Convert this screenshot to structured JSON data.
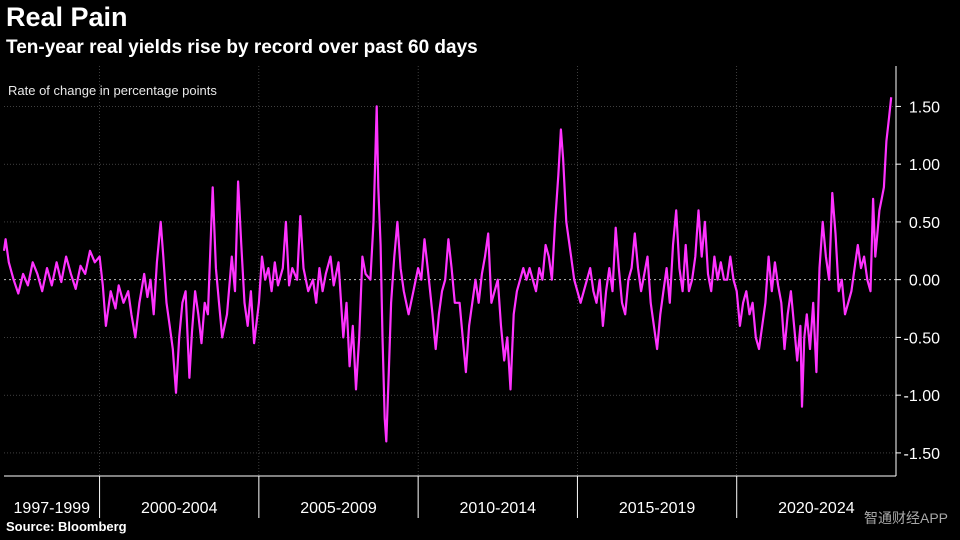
{
  "title": "Real Pain",
  "subtitle": "Ten-year real yields rise by record over past 60 days",
  "source": "Source: Bloomberg",
  "brand": "Bloomberg",
  "watermark": "智通财经APP",
  "colors": {
    "background": "#000000",
    "series": "#ff33ff",
    "grid": "#666666",
    "text": "#ffffff"
  },
  "chart_data": {
    "type": "line",
    "ylabel": "Rate of change in percentage points",
    "ylim": [
      -1.7,
      1.85
    ],
    "yticks": [
      1.5,
      1.0,
      0.5,
      0.0,
      -0.5,
      -1.0,
      -1.5
    ],
    "ytick_labels": [
      "1.50",
      "1.00",
      "0.50",
      "0.00",
      "-0.50",
      "-1.00",
      "-1.50"
    ],
    "x_range": [
      1997.0,
      2025.0
    ],
    "x_groups": [
      {
        "label": "1997-1999",
        "start": 1997.0,
        "end": 2000.0
      },
      {
        "label": "2000-2004",
        "start": 2000.0,
        "end": 2005.0
      },
      {
        "label": "2005-2009",
        "start": 2005.0,
        "end": 2010.0
      },
      {
        "label": "2010-2014",
        "start": 2010.0,
        "end": 2015.0
      },
      {
        "label": "2015-2019",
        "start": 2015.0,
        "end": 2020.0
      },
      {
        "label": "2020-2024",
        "start": 2020.0,
        "end": 2025.0
      }
    ],
    "grid": true,
    "zero_line": "dashed",
    "series": [
      {
        "values": [
          [
            1997.0,
            0.25
          ],
          [
            1997.05,
            0.35
          ],
          [
            1997.15,
            0.15
          ],
          [
            1997.3,
            0.0
          ],
          [
            1997.45,
            -0.12
          ],
          [
            1997.6,
            0.05
          ],
          [
            1997.75,
            -0.05
          ],
          [
            1997.9,
            0.15
          ],
          [
            1998.05,
            0.05
          ],
          [
            1998.2,
            -0.1
          ],
          [
            1998.35,
            0.1
          ],
          [
            1998.5,
            -0.05
          ],
          [
            1998.65,
            0.15
          ],
          [
            1998.8,
            -0.02
          ],
          [
            1998.95,
            0.2
          ],
          [
            1999.1,
            0.05
          ],
          [
            1999.25,
            -0.08
          ],
          [
            1999.4,
            0.12
          ],
          [
            1999.55,
            0.05
          ],
          [
            1999.7,
            0.25
          ],
          [
            1999.85,
            0.15
          ],
          [
            2000.0,
            0.2
          ],
          [
            2000.1,
            -0.05
          ],
          [
            2000.2,
            -0.4
          ],
          [
            2000.35,
            -0.1
          ],
          [
            2000.5,
            -0.25
          ],
          [
            2000.6,
            -0.05
          ],
          [
            2000.75,
            -0.2
          ],
          [
            2000.9,
            -0.1
          ],
          [
            2001.0,
            -0.3
          ],
          [
            2001.12,
            -0.5
          ],
          [
            2001.25,
            -0.2
          ],
          [
            2001.4,
            0.05
          ],
          [
            2001.5,
            -0.15
          ],
          [
            2001.6,
            0.0
          ],
          [
            2001.7,
            -0.3
          ],
          [
            2001.8,
            0.15
          ],
          [
            2001.92,
            0.5
          ],
          [
            2002.0,
            0.2
          ],
          [
            2002.1,
            -0.2
          ],
          [
            2002.2,
            -0.4
          ],
          [
            2002.3,
            -0.6
          ],
          [
            2002.4,
            -0.98
          ],
          [
            2002.5,
            -0.5
          ],
          [
            2002.6,
            -0.2
          ],
          [
            2002.7,
            -0.1
          ],
          [
            2002.82,
            -0.85
          ],
          [
            2002.9,
            -0.45
          ],
          [
            2003.0,
            -0.1
          ],
          [
            2003.1,
            -0.3
          ],
          [
            2003.2,
            -0.55
          ],
          [
            2003.3,
            -0.2
          ],
          [
            2003.4,
            -0.3
          ],
          [
            2003.55,
            0.8
          ],
          [
            2003.65,
            0.1
          ],
          [
            2003.75,
            -0.2
          ],
          [
            2003.85,
            -0.5
          ],
          [
            2004.0,
            -0.3
          ],
          [
            2004.15,
            0.2
          ],
          [
            2004.25,
            -0.1
          ],
          [
            2004.35,
            0.85
          ],
          [
            2004.45,
            0.3
          ],
          [
            2004.55,
            -0.2
          ],
          [
            2004.65,
            -0.4
          ],
          [
            2004.75,
            -0.1
          ],
          [
            2004.85,
            -0.55
          ],
          [
            2005.0,
            -0.2
          ],
          [
            2005.1,
            0.2
          ],
          [
            2005.2,
            0.0
          ],
          [
            2005.3,
            0.1
          ],
          [
            2005.4,
            -0.1
          ],
          [
            2005.5,
            0.15
          ],
          [
            2005.6,
            -0.05
          ],
          [
            2005.75,
            0.1
          ],
          [
            2005.85,
            0.5
          ],
          [
            2005.95,
            -0.05
          ],
          [
            2006.05,
            0.1
          ],
          [
            2006.2,
            0.0
          ],
          [
            2006.3,
            0.55
          ],
          [
            2006.4,
            0.1
          ],
          [
            2006.55,
            -0.1
          ],
          [
            2006.7,
            0.0
          ],
          [
            2006.8,
            -0.2
          ],
          [
            2006.9,
            0.1
          ],
          [
            2007.0,
            -0.1
          ],
          [
            2007.1,
            0.05
          ],
          [
            2007.25,
            0.2
          ],
          [
            2007.35,
            -0.05
          ],
          [
            2007.5,
            0.15
          ],
          [
            2007.65,
            -0.5
          ],
          [
            2007.75,
            -0.2
          ],
          [
            2007.85,
            -0.75
          ],
          [
            2007.95,
            -0.4
          ],
          [
            2008.05,
            -0.95
          ],
          [
            2008.15,
            -0.5
          ],
          [
            2008.25,
            0.2
          ],
          [
            2008.35,
            0.05
          ],
          [
            2008.5,
            0.0
          ],
          [
            2008.6,
            0.5
          ],
          [
            2008.7,
            1.5
          ],
          [
            2008.75,
            0.8
          ],
          [
            2008.82,
            0.3
          ],
          [
            2008.88,
            -0.5
          ],
          [
            2008.95,
            -1.2
          ],
          [
            2009.0,
            -1.4
          ],
          [
            2009.08,
            -0.8
          ],
          [
            2009.15,
            -0.2
          ],
          [
            2009.25,
            0.2
          ],
          [
            2009.35,
            0.5
          ],
          [
            2009.45,
            0.1
          ],
          [
            2009.55,
            -0.1
          ],
          [
            2009.7,
            -0.3
          ],
          [
            2009.85,
            -0.1
          ],
          [
            2010.0,
            0.1
          ],
          [
            2010.1,
            0.0
          ],
          [
            2010.2,
            0.35
          ],
          [
            2010.3,
            0.1
          ],
          [
            2010.45,
            -0.3
          ],
          [
            2010.55,
            -0.6
          ],
          [
            2010.65,
            -0.3
          ],
          [
            2010.75,
            -0.1
          ],
          [
            2010.85,
            0.0
          ],
          [
            2010.95,
            0.35
          ],
          [
            2011.05,
            0.1
          ],
          [
            2011.15,
            -0.2
          ],
          [
            2011.3,
            -0.2
          ],
          [
            2011.4,
            -0.5
          ],
          [
            2011.5,
            -0.8
          ],
          [
            2011.6,
            -0.4
          ],
          [
            2011.7,
            -0.2
          ],
          [
            2011.8,
            0.0
          ],
          [
            2011.9,
            -0.2
          ],
          [
            2012.0,
            0.05
          ],
          [
            2012.1,
            0.2
          ],
          [
            2012.2,
            0.4
          ],
          [
            2012.3,
            -0.2
          ],
          [
            2012.4,
            -0.1
          ],
          [
            2012.5,
            0.0
          ],
          [
            2012.6,
            -0.4
          ],
          [
            2012.7,
            -0.7
          ],
          [
            2012.8,
            -0.5
          ],
          [
            2012.9,
            -0.95
          ],
          [
            2013.0,
            -0.3
          ],
          [
            2013.1,
            -0.1
          ],
          [
            2013.2,
            0.0
          ],
          [
            2013.3,
            0.1
          ],
          [
            2013.4,
            0.0
          ],
          [
            2013.5,
            0.1
          ],
          [
            2013.6,
            0.0
          ],
          [
            2013.7,
            -0.1
          ],
          [
            2013.8,
            0.1
          ],
          [
            2013.9,
            0.0
          ],
          [
            2014.0,
            0.3
          ],
          [
            2014.1,
            0.2
          ],
          [
            2014.2,
            0.0
          ],
          [
            2014.3,
            0.5
          ],
          [
            2014.4,
            0.9
          ],
          [
            2014.48,
            1.3
          ],
          [
            2014.55,
            1.05
          ],
          [
            2014.65,
            0.5
          ],
          [
            2014.8,
            0.2
          ],
          [
            2014.9,
            0.0
          ],
          [
            2015.0,
            -0.1
          ],
          [
            2015.1,
            -0.2
          ],
          [
            2015.2,
            -0.1
          ],
          [
            2015.3,
            0.0
          ],
          [
            2015.4,
            0.1
          ],
          [
            2015.5,
            -0.1
          ],
          [
            2015.6,
            -0.2
          ],
          [
            2015.7,
            0.0
          ],
          [
            2015.8,
            -0.4
          ],
          [
            2015.9,
            -0.1
          ],
          [
            2016.0,
            0.1
          ],
          [
            2016.1,
            -0.1
          ],
          [
            2016.2,
            0.45
          ],
          [
            2016.3,
            0.1
          ],
          [
            2016.4,
            -0.2
          ],
          [
            2016.5,
            -0.3
          ],
          [
            2016.6,
            0.0
          ],
          [
            2016.7,
            0.1
          ],
          [
            2016.8,
            0.4
          ],
          [
            2016.9,
            0.1
          ],
          [
            2017.0,
            -0.1
          ],
          [
            2017.1,
            0.05
          ],
          [
            2017.2,
            0.2
          ],
          [
            2017.3,
            -0.2
          ],
          [
            2017.4,
            -0.4
          ],
          [
            2017.5,
            -0.6
          ],
          [
            2017.6,
            -0.3
          ],
          [
            2017.7,
            -0.1
          ],
          [
            2017.8,
            0.1
          ],
          [
            2017.9,
            -0.2
          ],
          [
            2018.0,
            0.3
          ],
          [
            2018.1,
            0.6
          ],
          [
            2018.2,
            0.1
          ],
          [
            2018.3,
            -0.1
          ],
          [
            2018.4,
            0.3
          ],
          [
            2018.5,
            -0.1
          ],
          [
            2018.6,
            0.0
          ],
          [
            2018.7,
            0.2
          ],
          [
            2018.8,
            0.6
          ],
          [
            2018.9,
            0.2
          ],
          [
            2019.0,
            0.5
          ],
          [
            2019.1,
            0.05
          ],
          [
            2019.2,
            -0.1
          ],
          [
            2019.3,
            0.2
          ],
          [
            2019.4,
            0.0
          ],
          [
            2019.5,
            0.15
          ],
          [
            2019.6,
            0.0
          ],
          [
            2019.7,
            0.0
          ],
          [
            2019.8,
            0.2
          ],
          [
            2019.9,
            0.0
          ],
          [
            2020.0,
            -0.1
          ],
          [
            2020.1,
            -0.4
          ],
          [
            2020.2,
            -0.2
          ],
          [
            2020.3,
            -0.1
          ],
          [
            2020.4,
            -0.3
          ],
          [
            2020.5,
            -0.2
          ],
          [
            2020.6,
            -0.5
          ],
          [
            2020.7,
            -0.6
          ],
          [
            2020.8,
            -0.4
          ],
          [
            2020.9,
            -0.2
          ],
          [
            2021.0,
            0.2
          ],
          [
            2021.1,
            -0.1
          ],
          [
            2021.2,
            0.15
          ],
          [
            2021.3,
            -0.05
          ],
          [
            2021.4,
            -0.2
          ],
          [
            2021.5,
            -0.6
          ],
          [
            2021.6,
            -0.3
          ],
          [
            2021.7,
            -0.1
          ],
          [
            2021.8,
            -0.4
          ],
          [
            2021.9,
            -0.7
          ],
          [
            2022.0,
            -0.4
          ],
          [
            2022.05,
            -1.1
          ],
          [
            2022.12,
            -0.5
          ],
          [
            2022.2,
            -0.3
          ],
          [
            2022.3,
            -0.6
          ],
          [
            2022.4,
            -0.2
          ],
          [
            2022.5,
            -0.8
          ],
          [
            2022.6,
            0.1
          ],
          [
            2022.7,
            0.5
          ],
          [
            2022.8,
            0.2
          ],
          [
            2022.9,
            0.0
          ],
          [
            2023.0,
            0.75
          ],
          [
            2023.1,
            0.4
          ],
          [
            2023.2,
            -0.1
          ],
          [
            2023.3,
            0.0
          ],
          [
            2023.4,
            -0.3
          ],
          [
            2023.5,
            -0.2
          ],
          [
            2023.6,
            -0.1
          ],
          [
            2023.7,
            0.1
          ],
          [
            2023.8,
            0.3
          ],
          [
            2023.9,
            0.1
          ],
          [
            2024.0,
            0.2
          ],
          [
            2024.1,
            0.0
          ],
          [
            2024.2,
            -0.1
          ],
          [
            2024.28,
            0.7
          ],
          [
            2024.35,
            0.2
          ],
          [
            2024.4,
            0.35
          ],
          [
            2024.48,
            0.6
          ],
          [
            2024.55,
            0.7
          ],
          [
            2024.62,
            0.8
          ],
          [
            2024.7,
            1.2
          ],
          [
            2024.78,
            1.4
          ],
          [
            2024.85,
            1.58
          ]
        ]
      }
    ]
  }
}
